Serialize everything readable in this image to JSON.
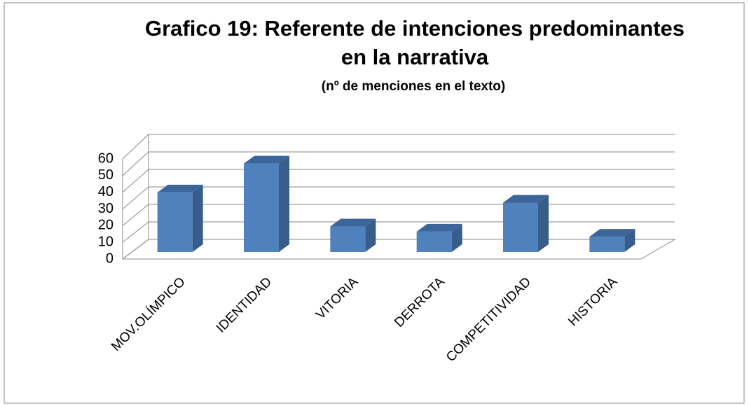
{
  "chart_data": {
    "type": "bar3d",
    "title": [
      "Grafico 19: Referente de intenciones predominantes",
      "en la narrativa"
    ],
    "subtitle": "(nº de menciones en el texto)",
    "categories": [
      "MOV.OLÍMPICO",
      "IDENTIDAD",
      "VITORIA",
      "DERROTA",
      "COMPETITIVIDAD",
      "HISTORIA"
    ],
    "values": [
      35,
      52,
      15,
      12,
      29,
      9
    ],
    "color": "#4f81bd",
    "ylim": [
      0,
      60
    ],
    "yticks": [
      0,
      10,
      20,
      30,
      40,
      50,
      60
    ],
    "grid": true
  }
}
